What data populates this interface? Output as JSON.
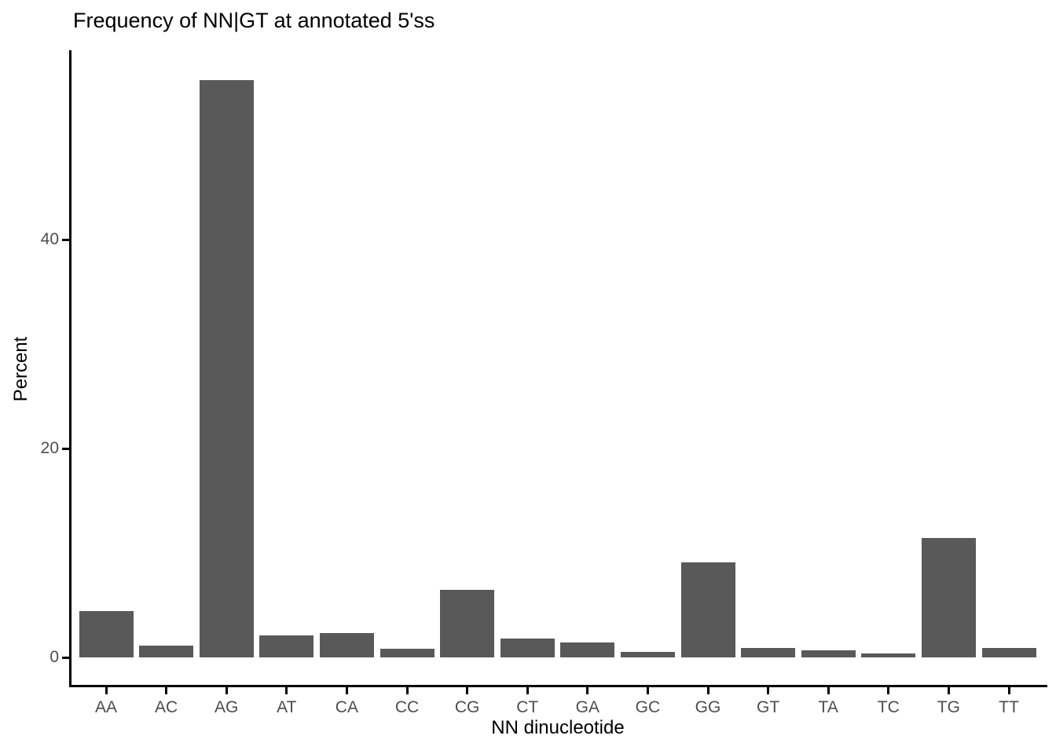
{
  "chart_data": {
    "type": "bar",
    "title": "Frequency of NN|GT at annotated 5'ss",
    "xlabel": "NN dinucleotide",
    "ylabel": "Percent",
    "categories": [
      "AA",
      "AC",
      "AG",
      "AT",
      "CA",
      "CC",
      "CG",
      "CT",
      "GA",
      "GC",
      "GG",
      "GT",
      "TA",
      "TC",
      "TG",
      "TT"
    ],
    "values": [
      4.4,
      1.1,
      55.3,
      2.1,
      2.3,
      0.8,
      6.5,
      1.8,
      1.4,
      0.5,
      9.1,
      0.9,
      0.7,
      0.4,
      11.4,
      0.9
    ],
    "y_ticks": [
      0,
      20,
      40
    ],
    "ylim": [
      0,
      58
    ],
    "grid": false,
    "legend": "none",
    "colors": {
      "bar_fill": "#595959",
      "axis_line": "#000000",
      "tick_label": "#4d4d4d",
      "title_text": "#000000",
      "background": "#ffffff"
    }
  }
}
